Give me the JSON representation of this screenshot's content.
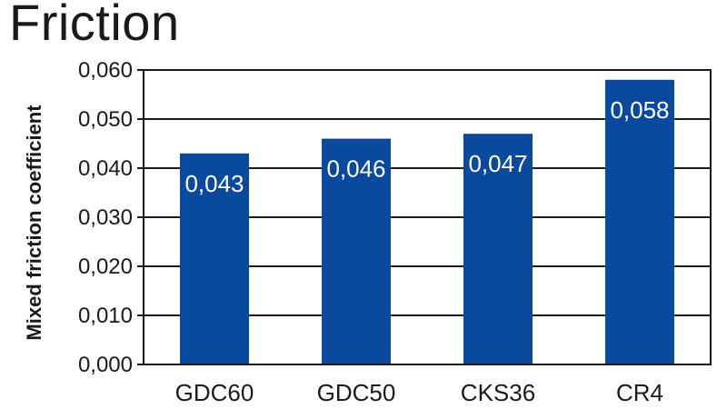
{
  "chart_data": {
    "type": "bar",
    "title": "Friction",
    "xlabel": "",
    "ylabel": "Mixed friction coefficient",
    "categories": [
      "GDC60",
      "GDC50",
      "CKS36",
      "CR4"
    ],
    "values": [
      0.043,
      0.046,
      0.047,
      0.058
    ],
    "value_labels": [
      "0,043",
      "0,046",
      "0,047",
      "0,058"
    ],
    "ylim": [
      0,
      0.06
    ],
    "yticks": [
      0.0,
      0.01,
      0.02,
      0.03,
      0.04,
      0.05,
      0.06
    ],
    "ytick_labels": [
      "0,000",
      "0,010",
      "0,020",
      "0,030",
      "0,040",
      "0,050",
      "0,060"
    ],
    "grid": true,
    "legend": "none",
    "colors": {
      "bar": "#0a4a9e",
      "grid": "#1a1a1a",
      "frame": "#1a1a1a",
      "value_text": "#ffffff"
    }
  }
}
